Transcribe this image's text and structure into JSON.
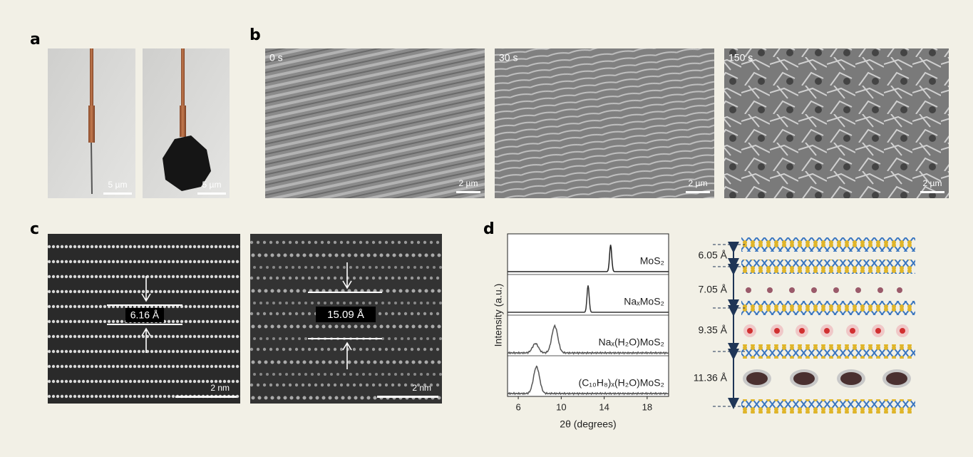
{
  "panels": {
    "a": {
      "label": "a",
      "scale_bars": [
        "5 µm",
        "5 µm"
      ]
    },
    "b": {
      "label": "b",
      "times": [
        "0 s",
        "30 s",
        "150 s"
      ],
      "scale_bars": [
        "2 µm",
        "2 µm",
        "2 µm"
      ]
    },
    "c": {
      "label": "c",
      "spacings": [
        "6.16 Å",
        "15.09 Å"
      ],
      "scale_bars": [
        "2 nm",
        "2 nm"
      ]
    },
    "d": {
      "label": "d",
      "spacings": [
        "6.05 Å",
        "7.05 Å",
        "9.35 Å",
        "11.36 Å"
      ]
    }
  },
  "chart_data": {
    "type": "xrd",
    "xlabel": "2θ (degrees)",
    "ylabel": "Intensity (a.u.)",
    "xlim": [
      5,
      20
    ],
    "xticks": [
      6,
      10,
      14,
      18
    ],
    "series": [
      {
        "name": "MoS₂",
        "color": "#222222",
        "peaks": [
          14.6
        ]
      },
      {
        "name": "NaₓMoS₂",
        "color": "#333333",
        "peaks": [
          12.5
        ]
      },
      {
        "name": "Naₓ(H₂O)MoS₂",
        "color": "#555555",
        "peaks": [
          7.6,
          9.4
        ]
      },
      {
        "name": "(C₁₀H₈)ₓ(H₂O)MoS₂",
        "color": "#555555",
        "peaks": [
          7.7
        ]
      }
    ]
  }
}
